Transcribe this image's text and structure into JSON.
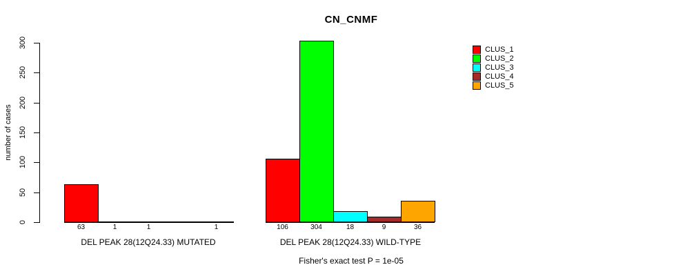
{
  "title": "CN_CNMF",
  "footnote": "Fisher's exact test P = 1e-05",
  "chart_data": {
    "type": "bar",
    "title": "CN_CNMF",
    "xlabel": "",
    "ylabel": "number of cases",
    "ylim": [
      0,
      300
    ],
    "yticks": [
      0,
      50,
      100,
      150,
      200,
      250,
      300
    ],
    "grid": false,
    "legend_position": "right",
    "legend": [
      {
        "label": "CLUS_1",
        "color": "#FF0000"
      },
      {
        "label": "CLUS_2",
        "color": "#00FF00"
      },
      {
        "label": "CLUS_3",
        "color": "#00FFFF"
      },
      {
        "label": "CLUS_4",
        "color": "#A52A2A"
      },
      {
        "label": "CLUS_5",
        "color": "#FFA500"
      }
    ],
    "groups": [
      {
        "label": "DEL PEAK 28(12Q24.33) MUTATED",
        "series": [
          "CLUS_1",
          "CLUS_2",
          "CLUS_3",
          "CLUS_4",
          "CLUS_5"
        ],
        "values": [
          63,
          1,
          1,
          0,
          1
        ],
        "bar_labels": [
          "63",
          "1",
          "1",
          "",
          "1"
        ]
      },
      {
        "label": "DEL PEAK 28(12Q24.33) WILD-TYPE",
        "series": [
          "CLUS_1",
          "CLUS_2",
          "CLUS_3",
          "CLUS_4",
          "CLUS_5"
        ],
        "values": [
          106,
          304,
          18,
          9,
          36
        ],
        "bar_labels": [
          "106",
          "304",
          "18",
          "9",
          "36"
        ]
      }
    ],
    "footnote": "Fisher's exact test P = 1e-05"
  }
}
